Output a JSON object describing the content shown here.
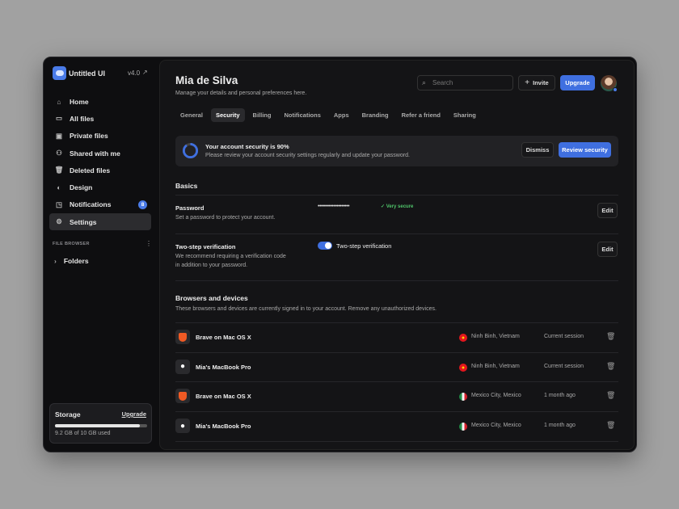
{
  "sidebar": {
    "brand": "Untitled UI",
    "version": "v4.0",
    "items": [
      {
        "label": "Home",
        "icon": "home-icon"
      },
      {
        "label": "All files",
        "icon": "folder-icon"
      },
      {
        "label": "Private files",
        "icon": "folder-lock-icon"
      },
      {
        "label": "Shared with me",
        "icon": "users-plus-icon"
      },
      {
        "label": "Deleted files",
        "icon": "trash-icon"
      },
      {
        "label": "Design",
        "icon": "design-icon"
      },
      {
        "label": "Notifications",
        "icon": "notification-icon",
        "badge": "8"
      },
      {
        "label": "Settings",
        "icon": "gear-icon",
        "active": true
      }
    ],
    "file_browser": "FILE BROWSER",
    "folders": "Folders",
    "storage": {
      "title": "Storage",
      "upgrade": "Upgrade",
      "used_text": "9.2 GB of 10 GB used",
      "fraction": 0.92
    }
  },
  "header": {
    "title": "Mia de Silva",
    "subtitle": "Manage your details and personal preferences here.",
    "search_placeholder": "Search",
    "invite": "Invite",
    "upgrade": "Upgrade"
  },
  "tabs": [
    "General",
    "Security",
    "Billing",
    "Notifications",
    "Apps",
    "Branding",
    "Refer a friend",
    "Sharing"
  ],
  "active_tab": "Security",
  "alert": {
    "title": "Your account security is 90%",
    "text": "Please review your account security settings regularly and update your password.",
    "dismiss": "Dismiss",
    "review": "Review security",
    "progress": 0.9
  },
  "basics": {
    "heading": "Basics",
    "password": {
      "label": "Password",
      "desc": "Set a password to protect your account.",
      "value": "••••••••••••••••••••",
      "strength": "Very secure",
      "edit": "Edit"
    },
    "two_step": {
      "label": "Two-step verification",
      "desc": "We recommend requiring a verification code in addition to your password.",
      "toggle_label": "Two-step verification",
      "enabled": true,
      "edit": "Edit"
    }
  },
  "devices": {
    "heading": "Browsers and devices",
    "desc": "These browsers and devices are currently signed in to your account. Remove any unauthorized devices.",
    "rows": [
      {
        "name": "Brave on Mac OS X",
        "icon": "brave-icon",
        "location": "Ninh Binh, Vietnam",
        "flag": "vietnam",
        "when": "Current session"
      },
      {
        "name": "Mia's MacBook Pro",
        "icon": "apple-icon",
        "location": "Ninh Binh, Vietnam",
        "flag": "vietnam",
        "when": "Current session"
      },
      {
        "name": "Brave on Mac OS X",
        "icon": "brave-icon",
        "location": "Mexico City, Mexico",
        "flag": "mexico",
        "when": "1 month ago"
      },
      {
        "name": "Mia's MacBook Pro",
        "icon": "apple-icon",
        "location": "Mexico City, Mexico",
        "flag": "mexico",
        "when": "1 month ago"
      }
    ]
  },
  "colors": {
    "accent": "#3f6fe0",
    "success": "#4fc46a",
    "background": "#141416"
  }
}
